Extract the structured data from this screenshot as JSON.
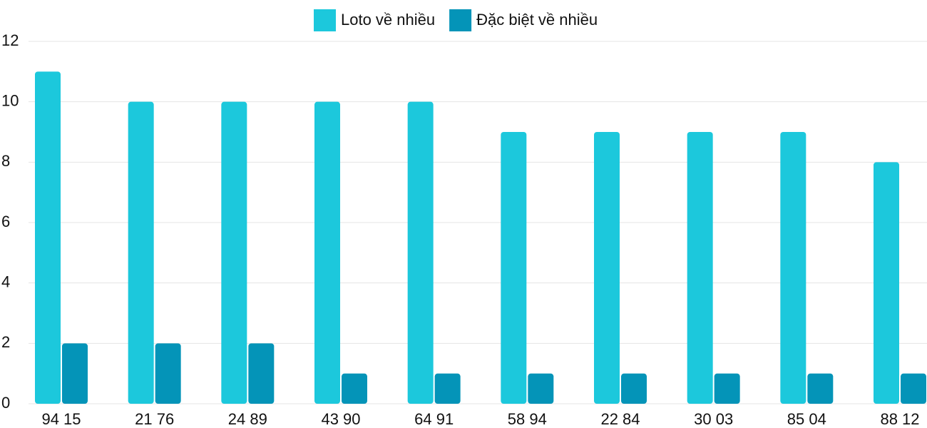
{
  "chart_data": {
    "type": "bar",
    "categories": [
      "94 15",
      "21 76",
      "24 89",
      "43 90",
      "64 91",
      "58 94",
      "22 84",
      "30 03",
      "85 04",
      "88 12"
    ],
    "series": [
      {
        "name": "Loto về nhiều",
        "color": "#1cc8dc",
        "values": [
          11,
          10,
          10,
          10,
          10,
          9,
          9,
          9,
          9,
          8
        ]
      },
      {
        "name": "Đặc biệt về nhiều",
        "color": "#0494b8",
        "values": [
          2,
          2,
          2,
          1,
          1,
          1,
          1,
          1,
          1,
          1
        ]
      }
    ],
    "ylim": [
      0,
      12
    ],
    "yticks": [
      0,
      2,
      4,
      6,
      8,
      10,
      12
    ],
    "grid": true,
    "legend": "top"
  }
}
